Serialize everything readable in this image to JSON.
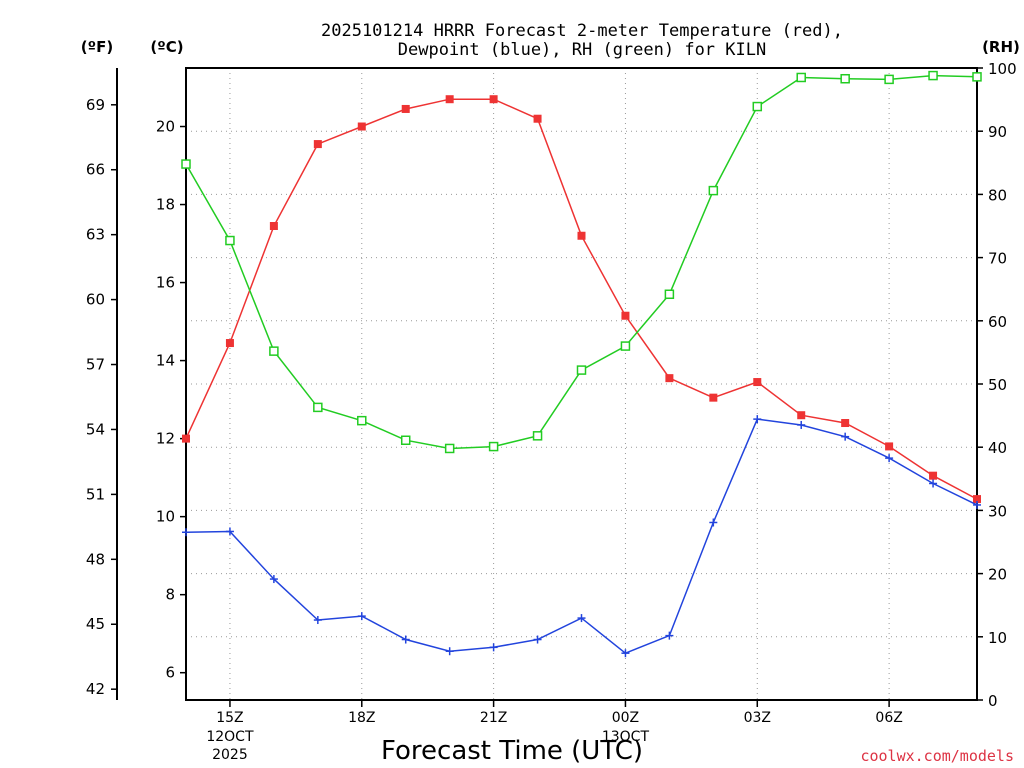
{
  "colors": {
    "temperature": "#ee3333",
    "dewpoint": "#2244dd",
    "rh": "#22cc22",
    "grid": "#999999",
    "credit": "#dd3344"
  },
  "chart_data": {
    "type": "line",
    "title": "2025101214 HRRR Forecast 2-meter Temperature (red),",
    "title2": "Dewpoint (blue), RH (green) for KILN",
    "xlabel": "Forecast Time (UTC)",
    "credit": "coolwx.com/models",
    "unit_f": "(ºF)",
    "unit_c": "(ºC)",
    "unit_rh": "(RH)",
    "x_range": [
      14,
      32
    ],
    "x_ticks": [
      {
        "hour": 15,
        "label": "15Z",
        "sub1": "12OCT",
        "sub2": "2025"
      },
      {
        "hour": 18,
        "label": "18Z",
        "sub1": "",
        "sub2": ""
      },
      {
        "hour": 21,
        "label": "21Z",
        "sub1": "",
        "sub2": ""
      },
      {
        "hour": 24,
        "label": "00Z",
        "sub1": "13OCT",
        "sub2": ""
      },
      {
        "hour": 27,
        "label": "03Z",
        "sub1": "",
        "sub2": ""
      },
      {
        "hour": 30,
        "label": "06Z",
        "sub1": "",
        "sub2": ""
      }
    ],
    "celsius_axis": {
      "ylim": [
        5.3,
        21.5
      ],
      "ticks": [
        "6",
        "8",
        "10",
        "12",
        "14",
        "16",
        "18",
        "20"
      ]
    },
    "fahrenheit_axis": {
      "ylim": [
        41.5,
        70.7
      ],
      "ticks": [
        "42",
        "45",
        "48",
        "51",
        "54",
        "57",
        "60",
        "63",
        "66",
        "69"
      ]
    },
    "rh_axis": {
      "ylim": [
        0,
        100
      ],
      "ticks": [
        "0",
        "10",
        "20",
        "30",
        "40",
        "50",
        "60",
        "70",
        "80",
        "90",
        "100"
      ]
    },
    "series": [
      {
        "name": "Temperature",
        "axis": "celsius",
        "marker": "filled-square",
        "x": [
          14,
          15,
          16,
          17,
          18,
          19,
          20,
          21,
          22,
          23,
          24,
          25,
          26,
          27,
          28,
          29,
          30,
          31,
          32
        ],
        "values": [
          12.0,
          14.45,
          17.45,
          19.55,
          20.0,
          20.45,
          20.7,
          20.7,
          20.2,
          17.2,
          15.15,
          13.55,
          13.05,
          13.45,
          12.6,
          12.4,
          11.8,
          11.05,
          10.45
        ]
      },
      {
        "name": "Dewpoint",
        "axis": "celsius",
        "marker": "plus",
        "x": [
          14,
          15,
          16,
          17,
          18,
          19,
          20,
          21,
          22,
          23,
          24,
          25,
          26,
          27,
          28,
          29,
          30,
          31,
          32
        ],
        "values": [
          9.6,
          9.62,
          8.4,
          7.35,
          7.45,
          6.85,
          6.55,
          6.65,
          6.85,
          7.4,
          6.5,
          6.95,
          9.85,
          12.5,
          12.35,
          12.05,
          11.5,
          10.85,
          10.3
        ]
      },
      {
        "name": "RH",
        "axis": "rh",
        "marker": "open-square",
        "x": [
          14,
          15,
          16,
          17,
          18,
          19,
          20,
          21,
          22,
          23,
          24,
          25,
          26,
          27,
          28,
          29,
          30,
          31,
          32
        ],
        "values": [
          84.8,
          72.7,
          55.2,
          46.3,
          44.2,
          41.1,
          39.8,
          40.1,
          41.8,
          52.2,
          56.0,
          64.2,
          80.6,
          93.9,
          98.5,
          98.3,
          98.2,
          98.8,
          98.6
        ]
      }
    ]
  }
}
